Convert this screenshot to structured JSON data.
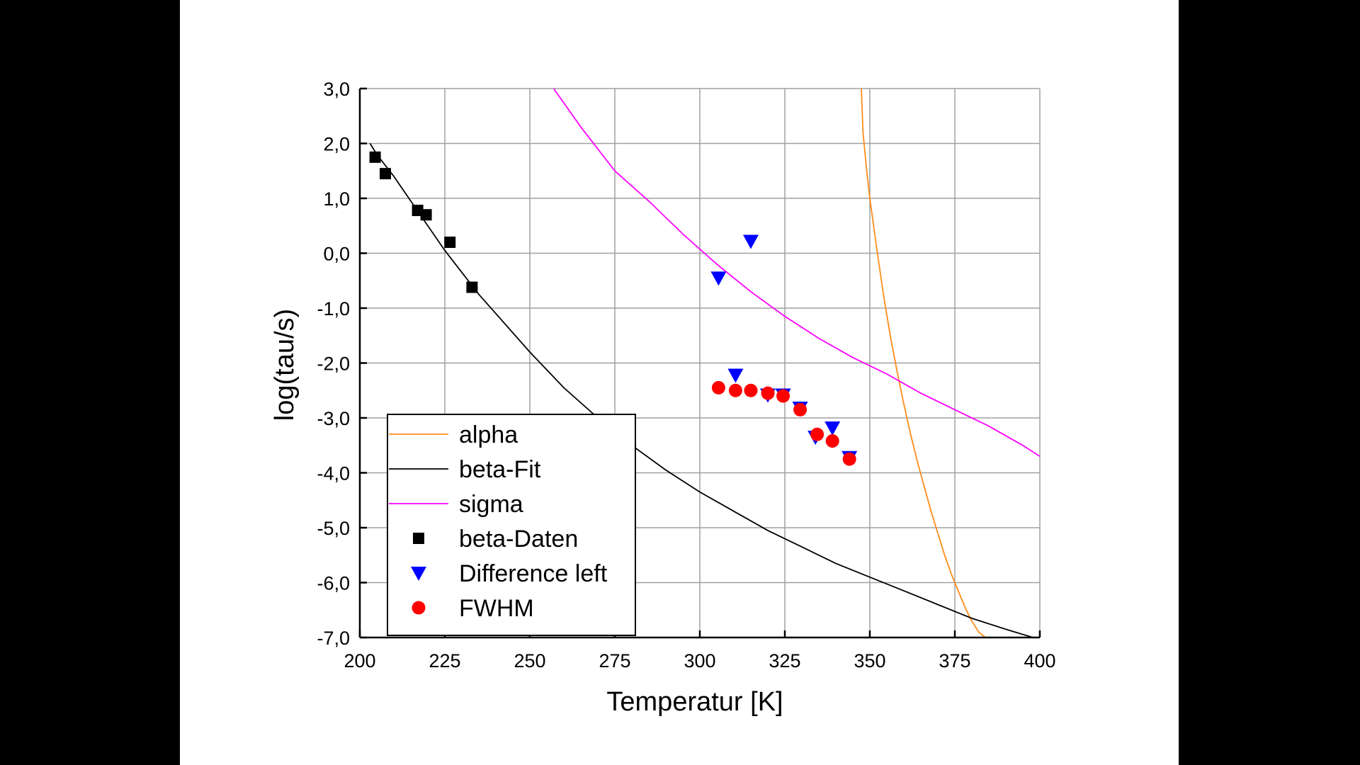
{
  "colors": {
    "background": "#000000",
    "plot_background": "#ffffff",
    "grid": "#a0a0a0",
    "alpha": "#ff8c1a",
    "beta_fit": "#000000",
    "sigma": "#ff00ff",
    "beta_daten": "#000000",
    "difference_left": "#0000ff",
    "fwhm": "#ff0000"
  },
  "chart_data": {
    "type": "scatter",
    "title": "",
    "xlabel": "Temperatur [K]",
    "ylabel": "log(tau/s)",
    "xlim": [
      200,
      400
    ],
    "ylim": [
      -7,
      3
    ],
    "grid": true,
    "legend_position": "bottom-left",
    "x_ticks": [
      200,
      225,
      250,
      275,
      300,
      325,
      350,
      375,
      400
    ],
    "x_tick_labels": [
      "200",
      "225",
      "250",
      "275",
      "300",
      "325",
      "350",
      "375",
      "400"
    ],
    "y_ticks": [
      3,
      2,
      1,
      0,
      -1,
      -2,
      -3,
      -4,
      -5,
      -6,
      -7
    ],
    "y_tick_labels": [
      "3,0",
      "2,0",
      "1,0",
      "0,0",
      "-1,0",
      "-2,0",
      "-3,0",
      "-4,0",
      "-5,0",
      "-6,0",
      "-7,0"
    ],
    "series": [
      {
        "name": "alpha",
        "kind": "line",
        "color": "#ff8c1a",
        "x": [
          347.5,
          348,
          349,
          350,
          352,
          354,
          356,
          358,
          360,
          362,
          364,
          366,
          368,
          370,
          372,
          374,
          376,
          378,
          380,
          382,
          384
        ],
        "y": [
          3.0,
          2.2,
          1.55,
          1.0,
          0.1,
          -0.75,
          -1.5,
          -2.15,
          -2.75,
          -3.3,
          -3.8,
          -4.25,
          -4.7,
          -5.1,
          -5.5,
          -5.85,
          -6.15,
          -6.45,
          -6.7,
          -6.9,
          -7.0
        ]
      },
      {
        "name": "beta-Fit",
        "kind": "line",
        "color": "#000000",
        "x": [
          203,
          205,
          210,
          215,
          220,
          225,
          230,
          235,
          240,
          250,
          260,
          270,
          280,
          290,
          300,
          310,
          320,
          330,
          340,
          350,
          360,
          370,
          380,
          390,
          398
        ],
        "y": [
          2.0,
          1.8,
          1.4,
          0.95,
          0.5,
          0.05,
          -0.35,
          -0.75,
          -1.1,
          -1.8,
          -2.45,
          -3.0,
          -3.5,
          -3.95,
          -4.35,
          -4.7,
          -5.05,
          -5.35,
          -5.65,
          -5.9,
          -6.15,
          -6.4,
          -6.65,
          -6.85,
          -7.0
        ]
      },
      {
        "name": "sigma",
        "kind": "line",
        "color": "#ff00ff",
        "x": [
          257,
          265,
          275,
          285,
          295,
          305,
          315,
          325,
          335,
          345,
          355,
          365,
          375,
          385,
          395,
          400
        ],
        "y": [
          3.0,
          2.3,
          1.5,
          0.95,
          0.35,
          -0.2,
          -0.7,
          -1.15,
          -1.55,
          -1.9,
          -2.2,
          -2.55,
          -2.85,
          -3.15,
          -3.5,
          -3.7
        ]
      },
      {
        "name": "beta-Daten",
        "kind": "scatter",
        "marker": "square",
        "color": "#000000",
        "x": [
          204.5,
          207.5,
          217,
          219.5,
          226.5,
          233
        ],
        "y": [
          1.75,
          1.45,
          0.78,
          0.7,
          0.2,
          -0.62
        ]
      },
      {
        "name": "Difference left",
        "kind": "scatter",
        "marker": "triangle-down",
        "color": "#0000ff",
        "x": [
          305.5,
          315,
          310.5,
          320,
          324.5,
          329.5,
          334,
          339,
          344
        ],
        "y": [
          -0.45,
          0.22,
          -2.22,
          -2.58,
          -2.58,
          -2.82,
          -3.35,
          -3.18,
          -3.72
        ]
      },
      {
        "name": "FWHM",
        "kind": "scatter",
        "marker": "circle",
        "color": "#ff0000",
        "x": [
          305.5,
          310.5,
          315,
          320,
          324.5,
          329.5,
          334.5,
          339,
          344
        ],
        "y": [
          -2.45,
          -2.5,
          -2.5,
          -2.55,
          -2.6,
          -2.85,
          -3.3,
          -3.42,
          -3.75
        ]
      }
    ]
  }
}
